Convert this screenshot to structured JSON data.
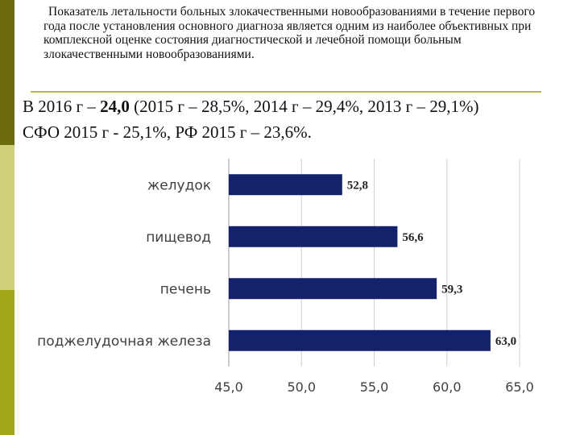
{
  "header": {
    "title": "Показатель летальности больных злокачественными новообразованиями в течение первого года после установления основного диагноза является одним из наиболее объективных при комплексной оценке состояния диагностической и лечебной помощи больным злокачественными новообразованиями."
  },
  "stats": {
    "line1_prefix": "В 2016 г – ",
    "line1_value": "24,0",
    "line1_suffix": " (2015 г – 28,5%, 2014 г  – 29,4%, 2013 г – 29,1%)",
    "line2": "СФО 2015 г - 25,1%, РФ 2015 г – 23,6%."
  },
  "colors": {
    "bar": "#14216b",
    "sidebar_dark": "#6b6b0c",
    "sidebar_light": "#cfd17a",
    "sidebar_mid": "#a3a719",
    "rule": "#b9b93a"
  },
  "chart_data": {
    "type": "bar",
    "orientation": "horizontal",
    "categories": [
      "желудок",
      "пищевод",
      "печень",
      "поджелудочная железа"
    ],
    "values": [
      52.8,
      56.6,
      59.3,
      63.0
    ],
    "value_labels": [
      "52,8",
      "56,6",
      "59,3",
      "63,0"
    ],
    "xlim": [
      45.0,
      65.0
    ],
    "xticks": [
      45.0,
      50.0,
      55.0,
      60.0,
      65.0
    ],
    "xtick_labels": [
      "45,0",
      "50,0",
      "55,0",
      "60,0",
      "65,0"
    ],
    "grid": true,
    "legend": "none",
    "title": "",
    "xlabel": "",
    "ylabel": ""
  }
}
